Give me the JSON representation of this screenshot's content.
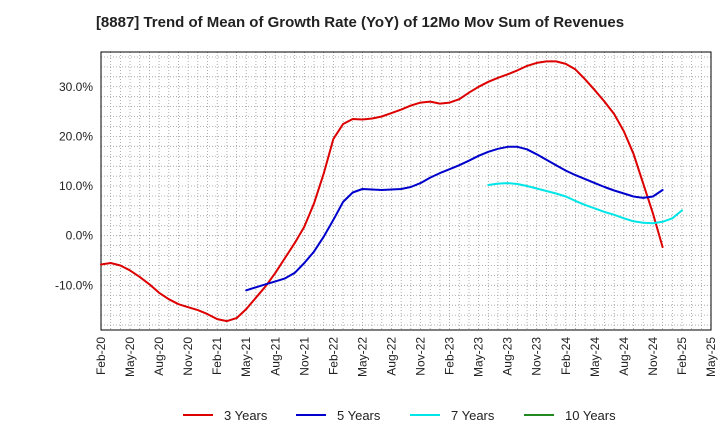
{
  "chart_data": {
    "type": "line",
    "title": "[8887]  Trend of Mean of Growth Rate (YoY) of 12Mo Mov Sum of Revenues",
    "xlabel": "",
    "ylabel": "",
    "ylim": [
      -19,
      37
    ],
    "grid": true,
    "legend_position": "bottom",
    "y_ticks": [
      -10,
      0,
      10,
      20,
      30
    ],
    "y_tick_labels": [
      "-10.0%",
      "0.0%",
      "10.0%",
      "20.0%",
      "30.0%"
    ],
    "x_tick_labels": [
      "Feb-20",
      "May-20",
      "Aug-20",
      "Nov-20",
      "Feb-21",
      "May-21",
      "Aug-21",
      "Nov-21",
      "Feb-22",
      "May-22",
      "Aug-22",
      "Nov-22",
      "Feb-23",
      "May-23",
      "Aug-23",
      "Nov-23",
      "Feb-24",
      "May-24",
      "Aug-24",
      "Nov-24",
      "Feb-25",
      "May-25"
    ],
    "x_start": "Feb-20",
    "n_months": 64,
    "series": [
      {
        "name": "3 Years",
        "color": "#dd0000",
        "start_index": 0,
        "values": [
          -5.8,
          -5.5,
          -6.0,
          -7.0,
          -8.3,
          -9.8,
          -11.5,
          -12.8,
          -13.8,
          -14.4,
          -15.0,
          -15.8,
          -16.8,
          -17.2,
          -16.6,
          -14.8,
          -12.5,
          -10.2,
          -7.5,
          -4.5,
          -1.5,
          1.8,
          6.5,
          12.5,
          19.5,
          22.5,
          23.5,
          23.4,
          23.6,
          24.0,
          24.7,
          25.4,
          26.2,
          26.8,
          27.0,
          26.6,
          26.8,
          27.5,
          28.8,
          30.0,
          31.0,
          31.8,
          32.5,
          33.3,
          34.2,
          34.8,
          35.1,
          35.1,
          34.6,
          33.5,
          31.5,
          29.3,
          27.0,
          24.5,
          21.0,
          16.5,
          10.5,
          4.5,
          -2.3
        ]
      },
      {
        "name": "5 Years",
        "color": "#0000cc",
        "start_index": 15,
        "values": [
          -11.0,
          -10.4,
          -9.8,
          -9.2,
          -8.6,
          -7.5,
          -5.5,
          -3.2,
          -0.2,
          3.2,
          6.8,
          8.7,
          9.4,
          9.3,
          9.2,
          9.3,
          9.4,
          9.8,
          10.6,
          11.7,
          12.6,
          13.4,
          14.2,
          15.1,
          16.1,
          16.9,
          17.5,
          17.9,
          17.9,
          17.4,
          16.4,
          15.3,
          14.2,
          13.1,
          12.2,
          11.4,
          10.6,
          9.8,
          9.1,
          8.5,
          7.9,
          7.6,
          7.9,
          9.2
        ]
      },
      {
        "name": "7 Years",
        "color": "#00e5e5",
        "start_index": 40,
        "values": [
          10.2,
          10.5,
          10.6,
          10.4,
          10.0,
          9.5,
          9.0,
          8.5,
          7.9,
          7.0,
          6.2,
          5.5,
          4.8,
          4.2,
          3.5,
          2.9,
          2.6,
          2.5,
          2.8,
          3.5,
          5.1
        ]
      },
      {
        "name": "10 Years",
        "color": "#228822",
        "start_index": 0,
        "values": []
      }
    ]
  }
}
